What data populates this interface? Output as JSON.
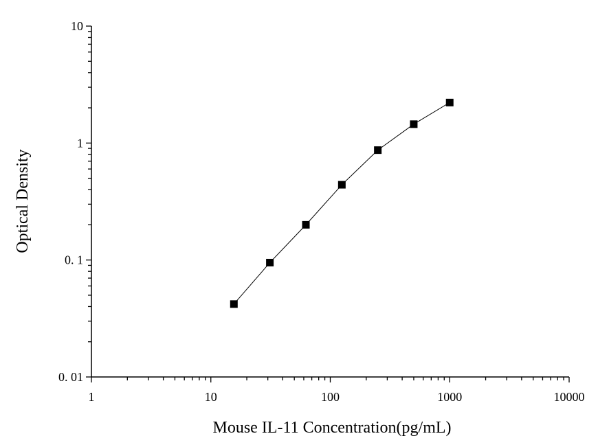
{
  "chart_data": {
    "type": "scatter",
    "xlabel": "Mouse IL-11 Concentration(pg/mL)",
    "ylabel": "Optical Density",
    "xscale": "log",
    "yscale": "log",
    "xlim": [
      1,
      10000
    ],
    "ylim": [
      0.01,
      10
    ],
    "grid": false,
    "x_ticks": [
      1,
      10,
      100,
      1000,
      10000
    ],
    "x_tick_labels": [
      "1",
      "10",
      "100",
      "1000",
      "10000"
    ],
    "y_ticks": [
      0.01,
      0.1,
      1,
      10
    ],
    "y_tick_labels": [
      "0. 01",
      "0. 1",
      "1",
      "10"
    ],
    "series": [
      {
        "marker": "square",
        "line": "connected",
        "color": "#000000",
        "x": [
          15.6,
          31.2,
          62.5,
          125,
          250,
          500,
          1000
        ],
        "y": [
          0.042,
          0.095,
          0.2,
          0.44,
          0.87,
          1.45,
          2.22
        ]
      }
    ]
  }
}
